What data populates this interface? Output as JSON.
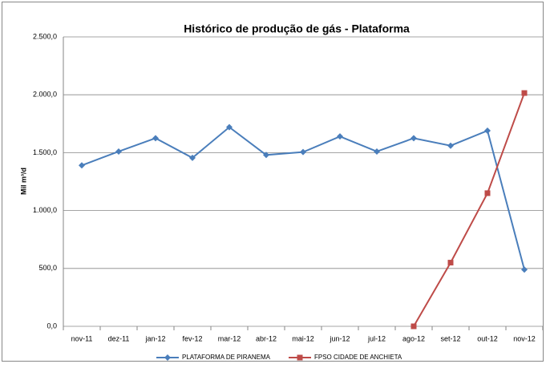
{
  "chart_data": {
    "type": "line",
    "title": "Histórico de produção de gás - Plataforma",
    "y_label": "Mil m³/d",
    "categories": [
      "nov-11",
      "dez-11",
      "jan-12",
      "fev-12",
      "mar-12",
      "abr-12",
      "mai-12",
      "jun-12",
      "jul-12",
      "ago-12",
      "set-12",
      "out-12",
      "nov-12"
    ],
    "series": [
      {
        "name": "PLATAFORMA DE PIRANEMA",
        "color": "#4a7ebb",
        "marker": "diamond",
        "values": [
          1390,
          1510,
          1625,
          1455,
          1720,
          1480,
          1505,
          1640,
          1510,
          1625,
          1560,
          1690,
          490
        ]
      },
      {
        "name": "FPSO CIDADE DE ANCHIETA",
        "color": "#be4b48",
        "marker": "square",
        "values": [
          null,
          null,
          null,
          null,
          null,
          null,
          null,
          null,
          null,
          0,
          550,
          1150,
          2015
        ]
      }
    ],
    "ylim": [
      0,
      2500
    ],
    "yticks": [
      {
        "value": 0,
        "label": "0,0"
      },
      {
        "value": 500,
        "label": "500,0"
      },
      {
        "value": 1000,
        "label": "1.000,0"
      },
      {
        "value": 1500,
        "label": "1.500,0"
      },
      {
        "value": 2000,
        "label": "2.000,0"
      },
      {
        "value": 2500,
        "label": "2.500,0"
      }
    ],
    "grid": true
  }
}
